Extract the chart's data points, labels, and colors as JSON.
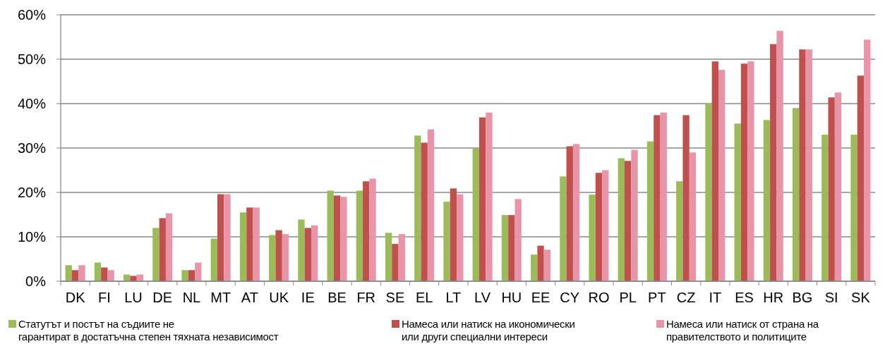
{
  "chart_data": {
    "type": "bar",
    "categories": [
      "DK",
      "FI",
      "LU",
      "DE",
      "NL",
      "MT",
      "AT",
      "UK",
      "IE",
      "BE",
      "FR",
      "SE",
      "EL",
      "LT",
      "LV",
      "HU",
      "EE",
      "CY",
      "RO",
      "PL",
      "PT",
      "CZ",
      "IT",
      "ES",
      "HR",
      "BG",
      "SI",
      "SK"
    ],
    "series": [
      {
        "name": "Статутът и постът на съдиите не гарантират в достатъчна степен тяхната независимост",
        "color": "#9bbb59",
        "values": [
          3.6,
          4.2,
          1.5,
          12,
          2.5,
          9.6,
          15.5,
          10.4,
          13.9,
          20.4,
          20.4,
          10.9,
          32.8,
          17.9,
          29.9,
          14.9,
          6,
          23.6,
          19.5,
          27.7,
          31.5,
          22.5,
          40,
          35.5,
          36.3,
          39,
          33,
          33
        ]
      },
      {
        "name": "Намеса или натиск на икономически или други специални интереси",
        "color": "#c0504d",
        "values": [
          2.5,
          3.1,
          1.2,
          14.2,
          2.5,
          19.6,
          16.6,
          11.5,
          12,
          19.3,
          22.5,
          8.4,
          31.2,
          20.9,
          36.9,
          14.9,
          8,
          30.4,
          24.4,
          27.1,
          37.4,
          37.4,
          49.5,
          49,
          53.4,
          52.2,
          41.4,
          46.3
        ]
      },
      {
        "name": "Намеса или натиск от страна на правителството и политиците",
        "color": "#e895aa",
        "values": [
          3.6,
          2.5,
          1.5,
          15.3,
          4.2,
          19.6,
          16.6,
          10.6,
          12.6,
          19,
          23.1,
          10.6,
          34.2,
          19.6,
          38,
          18.5,
          7.1,
          30.9,
          25,
          29.6,
          38,
          29,
          47.6,
          49.5,
          56.4,
          52.2,
          42.5,
          54.4
        ]
      }
    ],
    "ylim": [
      0,
      60
    ],
    "yticks": [
      {
        "value": 0,
        "label": "0%"
      },
      {
        "value": 10,
        "label": "10%"
      },
      {
        "value": 20,
        "label": "20%"
      },
      {
        "value": 30,
        "label": "30%"
      },
      {
        "value": 40,
        "label": "40%"
      },
      {
        "value": 50,
        "label": "50%"
      },
      {
        "value": 60,
        "label": "60%"
      }
    ],
    "grid": "y",
    "legend": "bottom"
  }
}
